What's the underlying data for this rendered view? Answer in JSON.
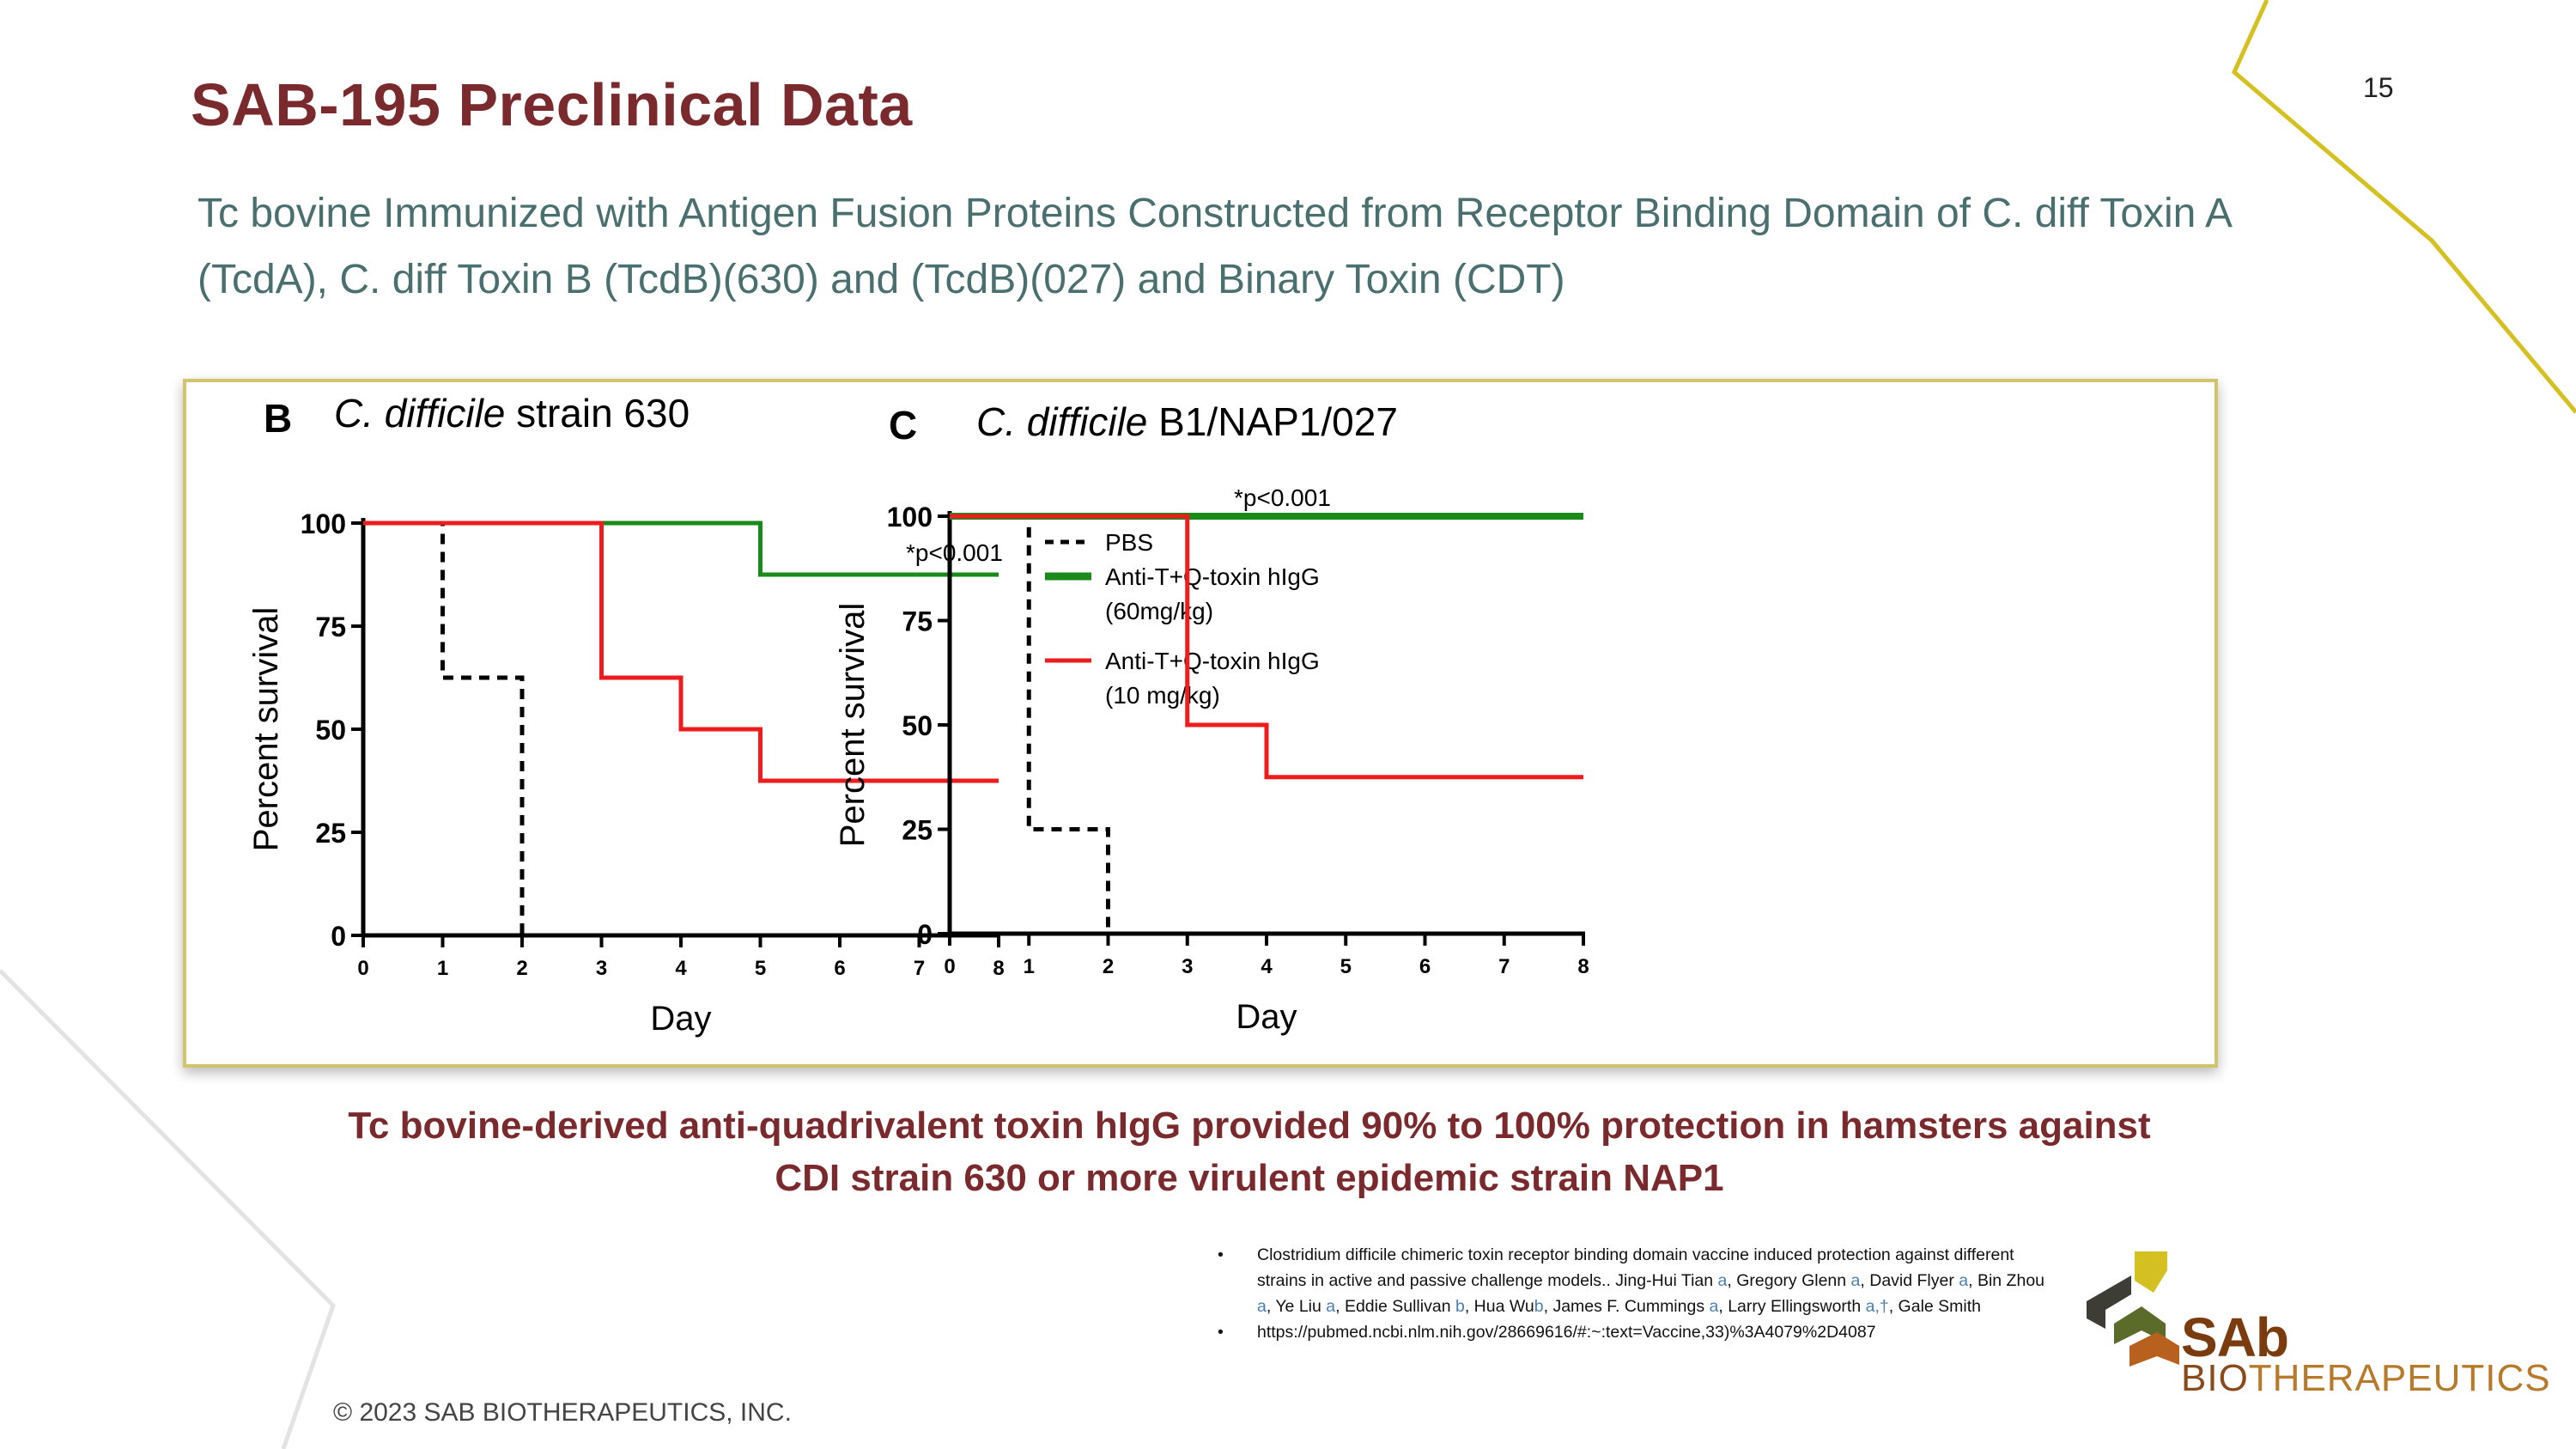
{
  "page_number": "15",
  "title": "SAB-195 Preclinical Data",
  "subtitle": "Tc bovine Immunized with Antigen Fusion Proteins Constructed from Receptor Binding Domain of C. diff Toxin A (TcdA), C. diff Toxin B (TcdB)(630) and  (TcdB)(027) and Binary Toxin (CDT)",
  "caption_line1": "Tc bovine-derived anti-quadrivalent toxin hIgG provided 90% to 100% protection in hamsters against",
  "caption_line2": "CDI strain 630 or more virulent epidemic strain NAP1",
  "references": {
    "ref1_a": "Clostridium difficile chimeric toxin receptor binding domain vaccine induced protection against different strains in active and passive challenge models.. Jing-Hui Tian",
    "ref1_b": ", Gregory Glenn ",
    "ref1_c": ", David Flyer ",
    "ref1_d": ", Bin Zhou ",
    "ref1_e": ", Ye Liu ",
    "ref1_f": ", Eddie Sullivan ",
    "ref1_g": ", Hua Wu",
    "ref1_h": ", James F. Cummings ",
    "ref1_i": ", Larry Ellingsworth ",
    "ref1_j": ", Gale Smith",
    "aff_a": "a",
    "aff_b": "b",
    "aff_a_dagger": "a,†",
    "ref2": "https://pubmed.ncbi.nlm.nih.gov/28669616/#:~:text=Vaccine,33)%3A4079%2D4087"
  },
  "copyright": "© 2023 SAB BIOTHERAPEUTICS, INC.",
  "logo": {
    "word": "SAb",
    "sub_part1": "BIO",
    "sub_part2": "THERAPEUTICS"
  },
  "colors": {
    "title": "#7a2a2d",
    "subtitle": "#4a6f6f",
    "accent_yellow": "#d4c020",
    "pbs": "#000000",
    "high_dose": "#1a8a1a",
    "low_dose": "#ee1c1c"
  },
  "chart_data": [
    {
      "panel_letter": "B",
      "type": "line",
      "step": true,
      "title_italic": "C. difficile",
      "title_rest": " strain 630",
      "xlabel": "Day",
      "ylabel": "Percent survival",
      "xlim": [
        0,
        8
      ],
      "ylim": [
        0,
        100
      ],
      "xticks": [
        0,
        1,
        2,
        3,
        4,
        5,
        6,
        7,
        8
      ],
      "yticks": [
        0,
        25,
        50,
        75,
        100
      ],
      "annotation": "*p<0.001",
      "series": [
        {
          "name": "PBS",
          "style": "dashed",
          "color": "#000000",
          "x": [
            0,
            1,
            2
          ],
          "y": [
            100,
            62.5,
            0
          ]
        },
        {
          "name": "Anti-T+Q-toxin hIgG (60mg/kg)",
          "style": "solid",
          "color": "#1a8a1a",
          "x": [
            0,
            5,
            8
          ],
          "y": [
            100,
            87.5,
            87.5
          ]
        },
        {
          "name": "Anti-T+Q-toxin hIgG (10 mg/kg)",
          "style": "solid",
          "color": "#ee1c1c",
          "x": [
            0,
            3,
            4,
            5,
            8
          ],
          "y": [
            100,
            62.5,
            50,
            37.5,
            37.5
          ]
        }
      ],
      "legend": [
        {
          "label_line1": "PBS",
          "label_line2": "",
          "style": "dashed",
          "color": "#000000"
        },
        {
          "label_line1": "Anti-T+Q-toxin hIgG",
          "label_line2": "(60mg/kg)",
          "style": "solid",
          "color": "#1a8a1a"
        },
        {
          "label_line1": "Anti-T+Q-toxin hIgG",
          "label_line2": "(10 mg/kg)",
          "style": "solid",
          "color": "#ee1c1c"
        }
      ]
    },
    {
      "panel_letter": "C",
      "type": "line",
      "step": true,
      "title_italic": "C. difficile",
      "title_rest": " B1/NAP1/027",
      "xlabel": "Day",
      "ylabel": "Percent survival",
      "xlim": [
        0,
        8
      ],
      "ylim": [
        0,
        100
      ],
      "xticks": [
        0,
        1,
        2,
        3,
        4,
        5,
        6,
        7,
        8
      ],
      "yticks": [
        0,
        25,
        50,
        75,
        100
      ],
      "annotation": "*p<0.001",
      "series": [
        {
          "name": "PBS",
          "style": "dashed",
          "color": "#000000",
          "x": [
            0,
            1,
            2
          ],
          "y": [
            100,
            25,
            0
          ]
        },
        {
          "name": "Anti-T+Q-toxin hIgG (60mg/kg)",
          "style": "solid",
          "color": "#1a8a1a",
          "x": [
            0,
            8
          ],
          "y": [
            100,
            100
          ]
        },
        {
          "name": "Anti-T+Q-toxin hIgG (10 mg/kg)",
          "style": "solid",
          "color": "#ee1c1c",
          "x": [
            0,
            3,
            4,
            8
          ],
          "y": [
            100,
            50,
            37.5,
            37.5
          ]
        }
      ]
    }
  ]
}
